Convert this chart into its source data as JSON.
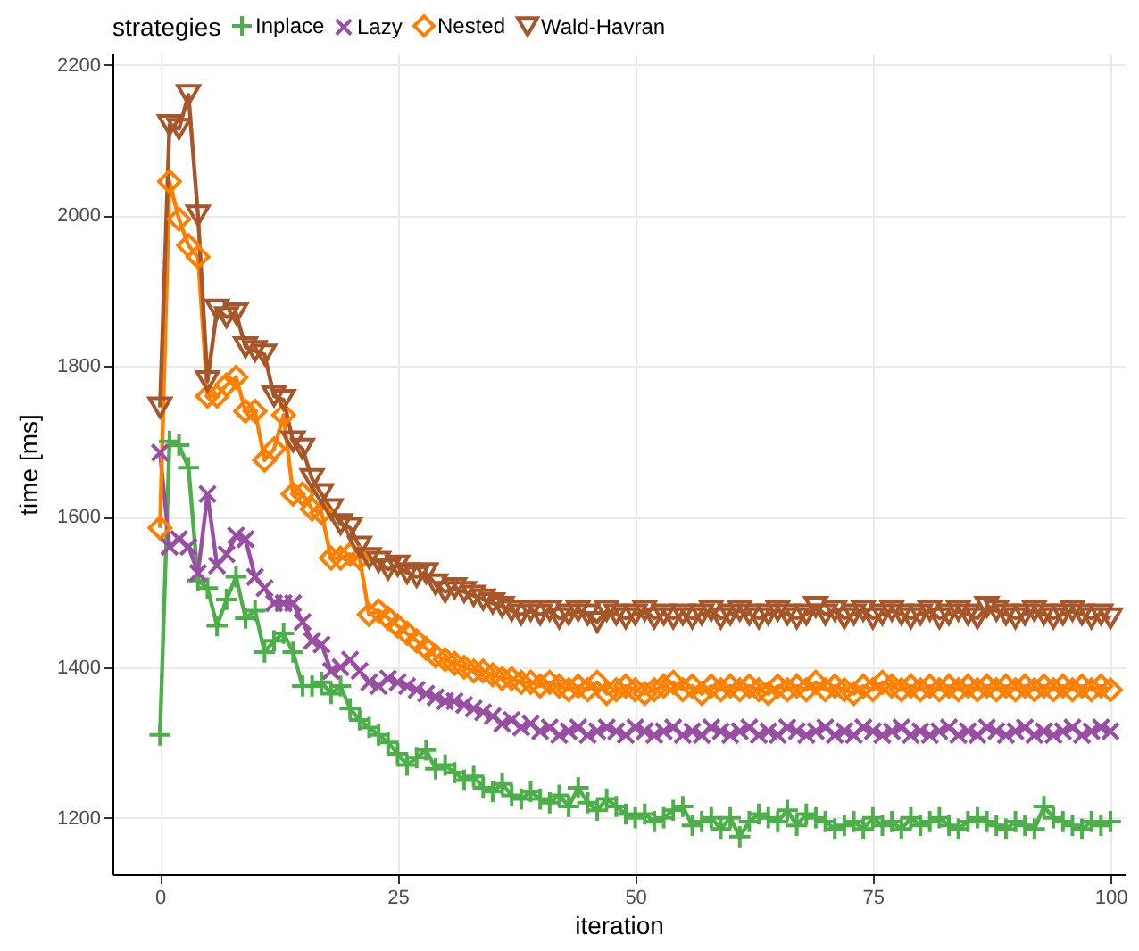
{
  "chart_data": {
    "type": "line",
    "xlabel": "iteration",
    "ylabel": "time [ms]",
    "legend_title": "strategies",
    "legend": "top",
    "grid": true,
    "xlim": [
      -5,
      101.5
    ],
    "xticks": [
      0,
      25,
      50,
      75,
      100
    ],
    "ylim": [
      1125,
      2215
    ],
    "yticks": [
      1200,
      1400,
      1600,
      1800,
      2000,
      2200
    ],
    "x": [
      0,
      1,
      2,
      3,
      4,
      5,
      6,
      7,
      8,
      9,
      10,
      11,
      12,
      13,
      14,
      15,
      16,
      17,
      18,
      19,
      20,
      21,
      22,
      23,
      24,
      25,
      26,
      27,
      28,
      29,
      30,
      31,
      32,
      33,
      34,
      35,
      36,
      37,
      38,
      39,
      40,
      41,
      42,
      43,
      44,
      45,
      46,
      47,
      48,
      49,
      50,
      51,
      52,
      53,
      54,
      55,
      56,
      57,
      58,
      59,
      60,
      61,
      62,
      63,
      64,
      65,
      66,
      67,
      68,
      69,
      70,
      71,
      72,
      73,
      74,
      75,
      76,
      77,
      78,
      79,
      80,
      81,
      82,
      83,
      84,
      85,
      86,
      87,
      88,
      89,
      90,
      91,
      92,
      93,
      94,
      95,
      96,
      97,
      98,
      99,
      100
    ],
    "series": [
      {
        "name": "Inplace",
        "color": "#4daf4a",
        "marker": "cross",
        "values": [
          1310,
          1700,
          1695,
          1665,
          1515,
          1505,
          1455,
          1490,
          1520,
          1465,
          1475,
          1420,
          1435,
          1445,
          1420,
          1375,
          1375,
          1380,
          1365,
          1375,
          1345,
          1330,
          1320,
          1310,
          1300,
          1285,
          1270,
          1280,
          1290,
          1265,
          1270,
          1260,
          1250,
          1255,
          1240,
          1235,
          1245,
          1230,
          1225,
          1235,
          1225,
          1220,
          1230,
          1215,
          1240,
          1220,
          1210,
          1225,
          1215,
          1205,
          1200,
          1205,
          1195,
          1200,
          1210,
          1215,
          1190,
          1195,
          1200,
          1185,
          1200,
          1175,
          1195,
          1205,
          1200,
          1195,
          1210,
          1190,
          1205,
          1200,
          1195,
          1185,
          1190,
          1195,
          1185,
          1200,
          1190,
          1195,
          1185,
          1200,
          1190,
          1195,
          1200,
          1190,
          1185,
          1195,
          1200,
          1195,
          1190,
          1185,
          1195,
          1190,
          1185,
          1215,
          1200,
          1195,
          1190,
          1185,
          1195,
          1190,
          1195
        ]
      },
      {
        "name": "Lazy",
        "color": "#984ea3",
        "marker": "x",
        "values": [
          1685,
          1560,
          1570,
          1560,
          1525,
          1630,
          1535,
          1550,
          1575,
          1570,
          1520,
          1505,
          1485,
          1485,
          1485,
          1460,
          1435,
          1430,
          1395,
          1400,
          1410,
          1395,
          1380,
          1375,
          1385,
          1380,
          1375,
          1370,
          1365,
          1360,
          1355,
          1355,
          1350,
          1345,
          1340,
          1335,
          1325,
          1330,
          1320,
          1325,
          1315,
          1320,
          1310,
          1315,
          1320,
          1310,
          1315,
          1320,
          1315,
          1310,
          1320,
          1315,
          1310,
          1315,
          1320,
          1310,
          1315,
          1310,
          1320,
          1315,
          1310,
          1315,
          1320,
          1310,
          1315,
          1310,
          1320,
          1315,
          1310,
          1315,
          1320,
          1310,
          1315,
          1310,
          1320,
          1315,
          1310,
          1315,
          1320,
          1310,
          1315,
          1310,
          1315,
          1320,
          1310,
          1315,
          1310,
          1320,
          1315,
          1310,
          1315,
          1320,
          1310,
          1315,
          1310,
          1315,
          1320,
          1310,
          1315,
          1320,
          1315
        ]
      },
      {
        "name": "Nested",
        "color": "#ff7f00",
        "marker": "diamond",
        "values": [
          1585,
          2045,
          1995,
          1960,
          1945,
          1760,
          1760,
          1775,
          1785,
          1740,
          1740,
          1675,
          1690,
          1735,
          1630,
          1630,
          1610,
          1605,
          1545,
          1545,
          1550,
          1545,
          1470,
          1475,
          1465,
          1455,
          1445,
          1435,
          1425,
          1415,
          1410,
          1405,
          1400,
          1395,
          1395,
          1390,
          1385,
          1385,
          1380,
          1380,
          1375,
          1380,
          1375,
          1370,
          1375,
          1370,
          1380,
          1365,
          1370,
          1375,
          1370,
          1365,
          1370,
          1375,
          1380,
          1370,
          1375,
          1365,
          1375,
          1370,
          1375,
          1370,
          1375,
          1370,
          1365,
          1375,
          1370,
          1375,
          1370,
          1380,
          1370,
          1375,
          1370,
          1365,
          1375,
          1370,
          1380,
          1375,
          1370,
          1375,
          1370,
          1375,
          1370,
          1375,
          1370,
          1375,
          1370,
          1375,
          1370,
          1375,
          1370,
          1375,
          1370,
          1375,
          1370,
          1375,
          1370,
          1375,
          1370,
          1375,
          1370
        ]
      },
      {
        "name": "Wald-Havran",
        "color": "#a65628",
        "marker": "triangle",
        "values": [
          1745,
          2120,
          2115,
          2160,
          2000,
          1780,
          1875,
          1865,
          1870,
          1825,
          1820,
          1815,
          1760,
          1755,
          1700,
          1690,
          1650,
          1630,
          1610,
          1590,
          1585,
          1560,
          1545,
          1540,
          1530,
          1535,
          1525,
          1520,
          1525,
          1510,
          1500,
          1505,
          1500,
          1495,
          1490,
          1485,
          1480,
          1475,
          1470,
          1475,
          1470,
          1475,
          1465,
          1470,
          1475,
          1470,
          1460,
          1475,
          1470,
          1465,
          1470,
          1475,
          1465,
          1470,
          1465,
          1470,
          1465,
          1470,
          1475,
          1465,
          1470,
          1475,
          1470,
          1465,
          1470,
          1475,
          1470,
          1465,
          1470,
          1480,
          1470,
          1475,
          1465,
          1470,
          1475,
          1465,
          1470,
          1475,
          1470,
          1465,
          1470,
          1475,
          1465,
          1470,
          1475,
          1470,
          1465,
          1480,
          1475,
          1470,
          1465,
          1470,
          1475,
          1470,
          1465,
          1470,
          1475,
          1470,
          1465,
          1470,
          1465
        ]
      }
    ]
  }
}
